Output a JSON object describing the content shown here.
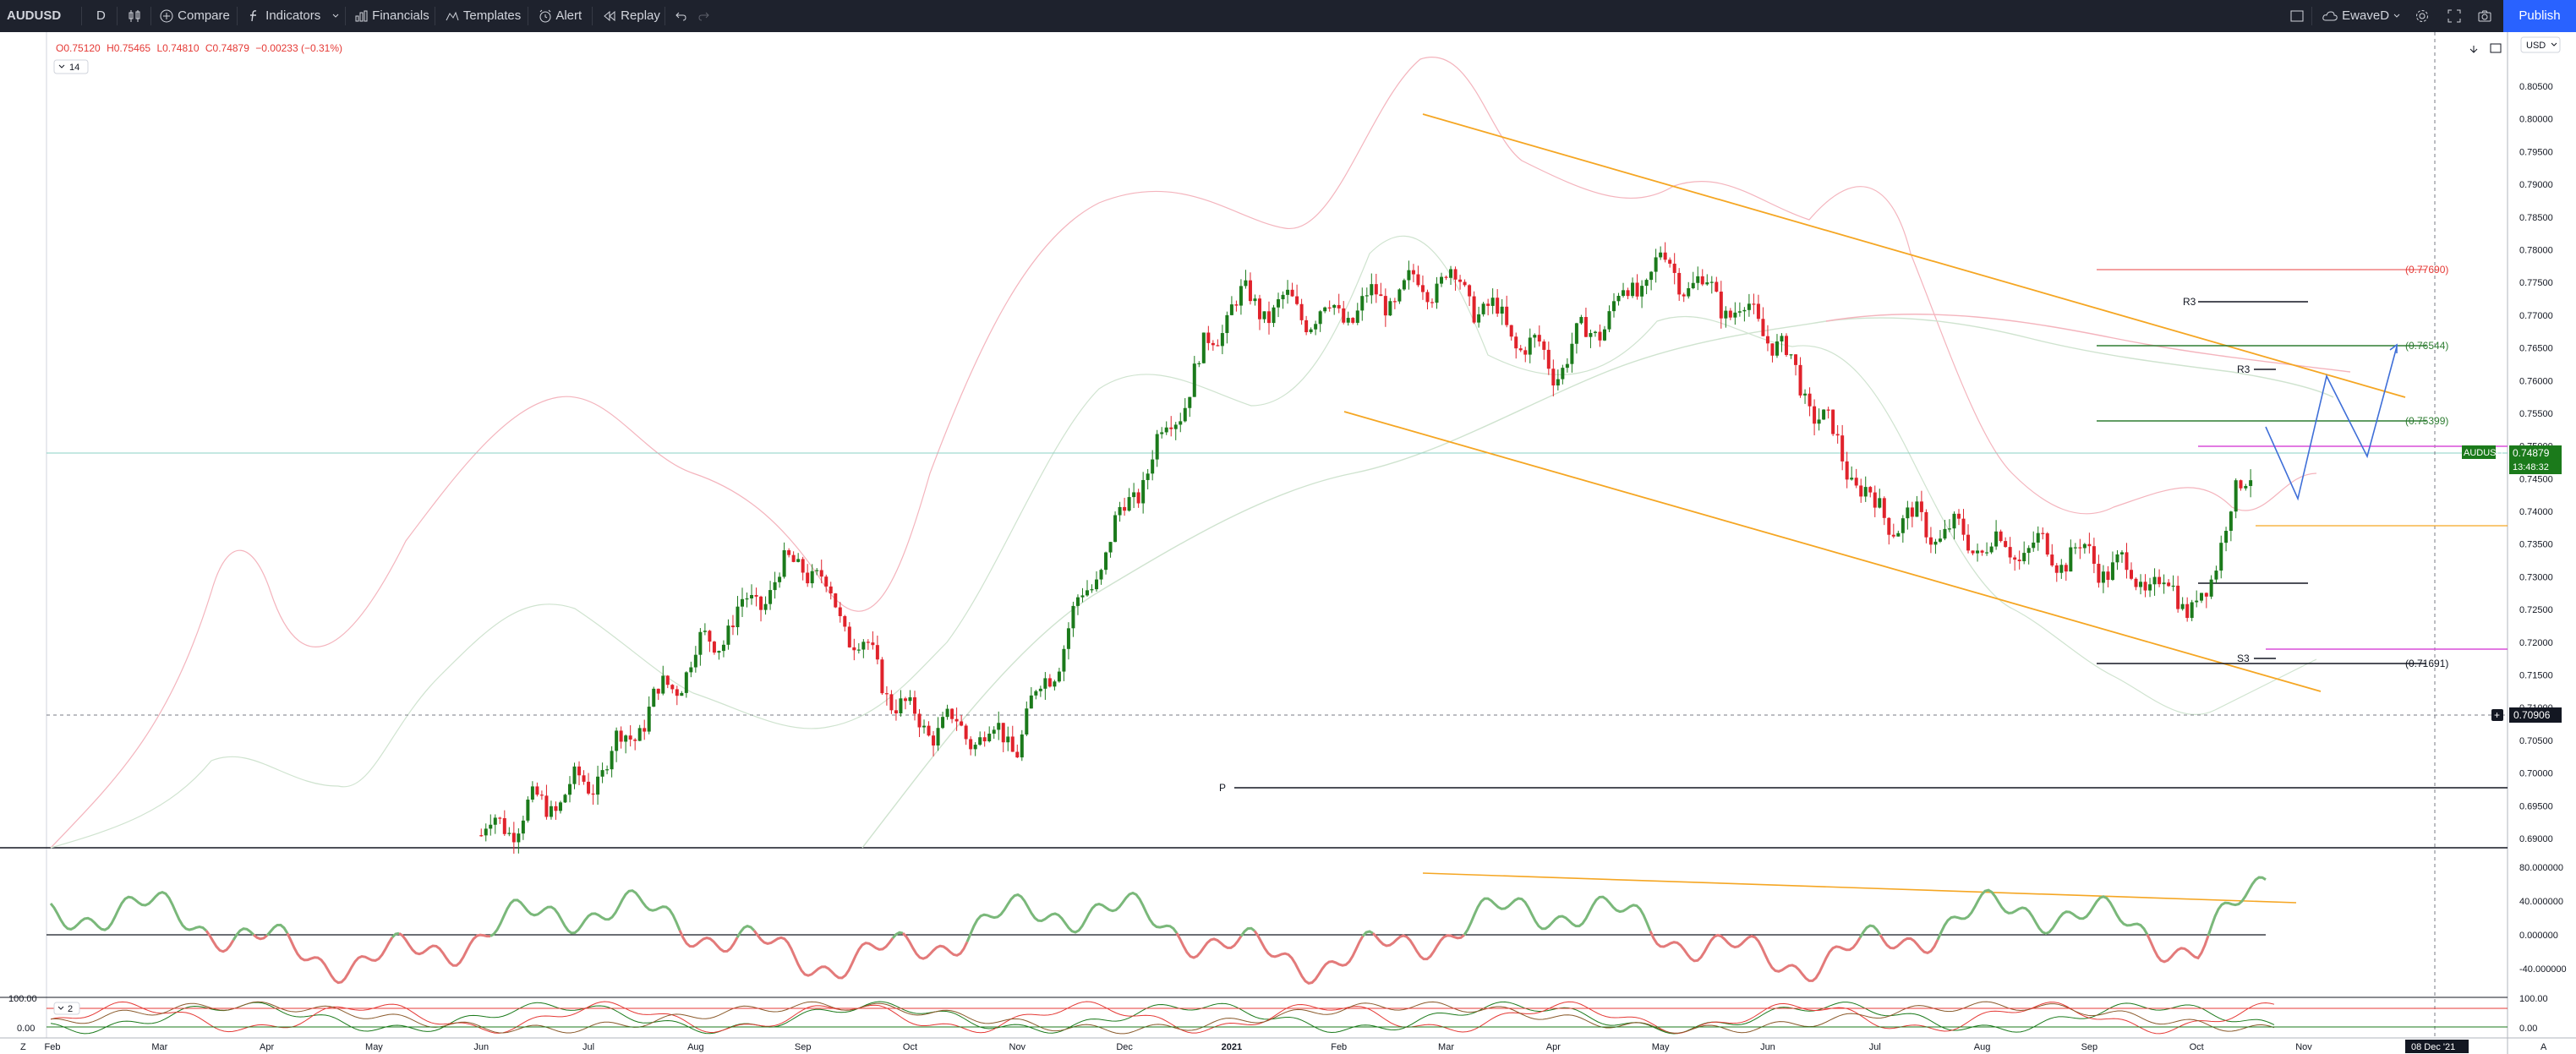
{
  "toolbar": {
    "symbol": "AUDUSD",
    "interval": "D",
    "compare": "Compare",
    "indicators": "Indicators",
    "financials": "Financials",
    "templates": "Templates",
    "alert": "Alert",
    "replay": "Replay",
    "layout_name": "EwaveD",
    "publish": "Publish"
  },
  "ohlc": {
    "open": "O0.75120",
    "high": "H0.75465",
    "low": "L0.74810",
    "close": "C0.74879",
    "change": "−0.00233 (−0.31%)"
  },
  "indicator_collapse_1": "14",
  "indicator_collapse_2": "2",
  "currency": "USD",
  "price_badge": {
    "symbol": "AUDUSD",
    "price": "0.74879",
    "countdown": "13:48:32"
  },
  "crosshair_price": "0.70906",
  "crosshair_date": "08 Dec '21",
  "axis_toggle": "A",
  "goto_left": "Z",
  "colors": {
    "up": "#1b7a1b",
    "down": "#e0222b",
    "channel": "#f5a623",
    "fib_green": "#2e7d32",
    "fib_red": "#e53935",
    "pivot": "#131722",
    "pink": "#d84fd8",
    "projection": "#3f6fd8",
    "rsi_up": "#7ab87a",
    "rsi_down": "#e37a7a"
  },
  "chart_data": {
    "type": "candlestick",
    "symbol": "AUDUSD",
    "interval": "D",
    "x_axis_labels": [
      "Feb",
      "Mar",
      "Apr",
      "May",
      "Jun",
      "Jul",
      "Aug",
      "Sep",
      "Oct",
      "Nov",
      "Dec",
      "2021",
      "Feb",
      "Mar",
      "Apr",
      "May",
      "Jun",
      "Jul",
      "Aug",
      "Sep",
      "Oct",
      "Nov"
    ],
    "y_axis_labels": [
      "0.80500",
      "0.80000",
      "0.79500",
      "0.79000",
      "0.78500",
      "0.78000",
      "0.77500",
      "0.77000",
      "0.76500",
      "0.76000",
      "0.75500",
      "0.75000",
      "0.74500",
      "0.74000",
      "0.73500",
      "0.73000",
      "0.72500",
      "0.72000",
      "0.71500",
      "0.71000",
      "0.70500",
      "0.70000",
      "0.69500",
      "0.69000"
    ],
    "ylim": [
      0.6895,
      0.8085
    ],
    "price_path": [
      {
        "x": "Jun",
        "y": 0.6905
      },
      {
        "x": "Jul",
        "y": 0.6985
      },
      {
        "x": "Aug",
        "y": 0.718
      },
      {
        "x": "Sep",
        "y": 0.733
      },
      {
        "x": "Oct",
        "y": 0.708
      },
      {
        "x": "Nov",
        "y": 0.705
      },
      {
        "x": "Dec",
        "y": 0.74
      },
      {
        "x": "2021",
        "y": 0.772
      },
      {
        "x": "Feb",
        "y": 0.77
      },
      {
        "x": "Mar",
        "y": 0.776
      },
      {
        "x": "Apr",
        "y": 0.762
      },
      {
        "x": "May",
        "y": 0.778
      },
      {
        "x": "Jun",
        "y": 0.768
      },
      {
        "x": "Jul",
        "y": 0.74
      },
      {
        "x": "Aug",
        "y": 0.735
      },
      {
        "x": "Sep",
        "y": 0.733
      },
      {
        "x": "Oct",
        "y": 0.726
      },
      {
        "x": "Oct",
        "y": 0.7488
      }
    ],
    "fib_levels": [
      {
        "label": "(0.77690)",
        "value": 0.7769
      },
      {
        "label": "(0.76544)",
        "value": 0.76544
      },
      {
        "label": "(0.75399)",
        "value": 0.75399
      },
      {
        "label": "(0.71691)",
        "value": 0.71691
      }
    ],
    "pivot_labels": [
      "R3",
      "R3",
      "S3",
      "P"
    ],
    "rsi_axis_labels": [
      "80.000000",
      "40.000000",
      "0.000000",
      "-40.000000"
    ],
    "stoch_axis_labels": [
      "100.00",
      "0.00"
    ],
    "stoch_left_labels": [
      "100.00",
      "0.00"
    ]
  }
}
